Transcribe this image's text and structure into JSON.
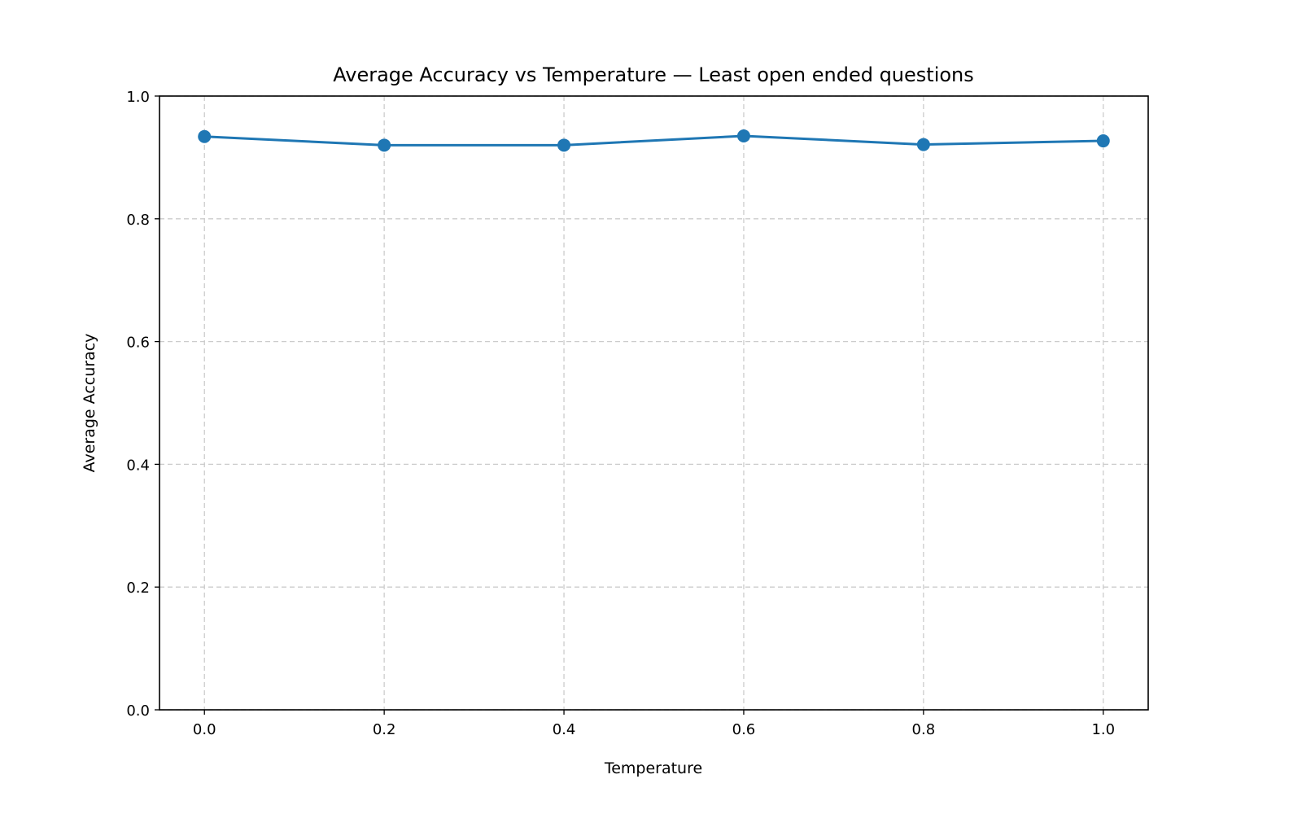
{
  "chart_data": {
    "type": "line",
    "title": "Average Accuracy vs Temperature — Least open ended questions",
    "xlabel": "Temperature",
    "ylabel": "Average Accuracy",
    "x": [
      0.0,
      0.2,
      0.4,
      0.6,
      0.8,
      1.0
    ],
    "series": [
      {
        "name": "Average Accuracy",
        "values": [
          0.934,
          0.92,
          0.92,
          0.935,
          0.921,
          0.927
        ],
        "color": "#1f77b4"
      }
    ],
    "xlim": [
      -0.05,
      1.05
    ],
    "ylim": [
      0.0,
      1.0
    ],
    "xticks": [
      "0.0",
      "0.2",
      "0.4",
      "0.6",
      "0.8",
      "1.0"
    ],
    "yticks": [
      "0.0",
      "0.2",
      "0.4",
      "0.6",
      "0.8",
      "1.0"
    ],
    "grid": true,
    "legend": null
  }
}
